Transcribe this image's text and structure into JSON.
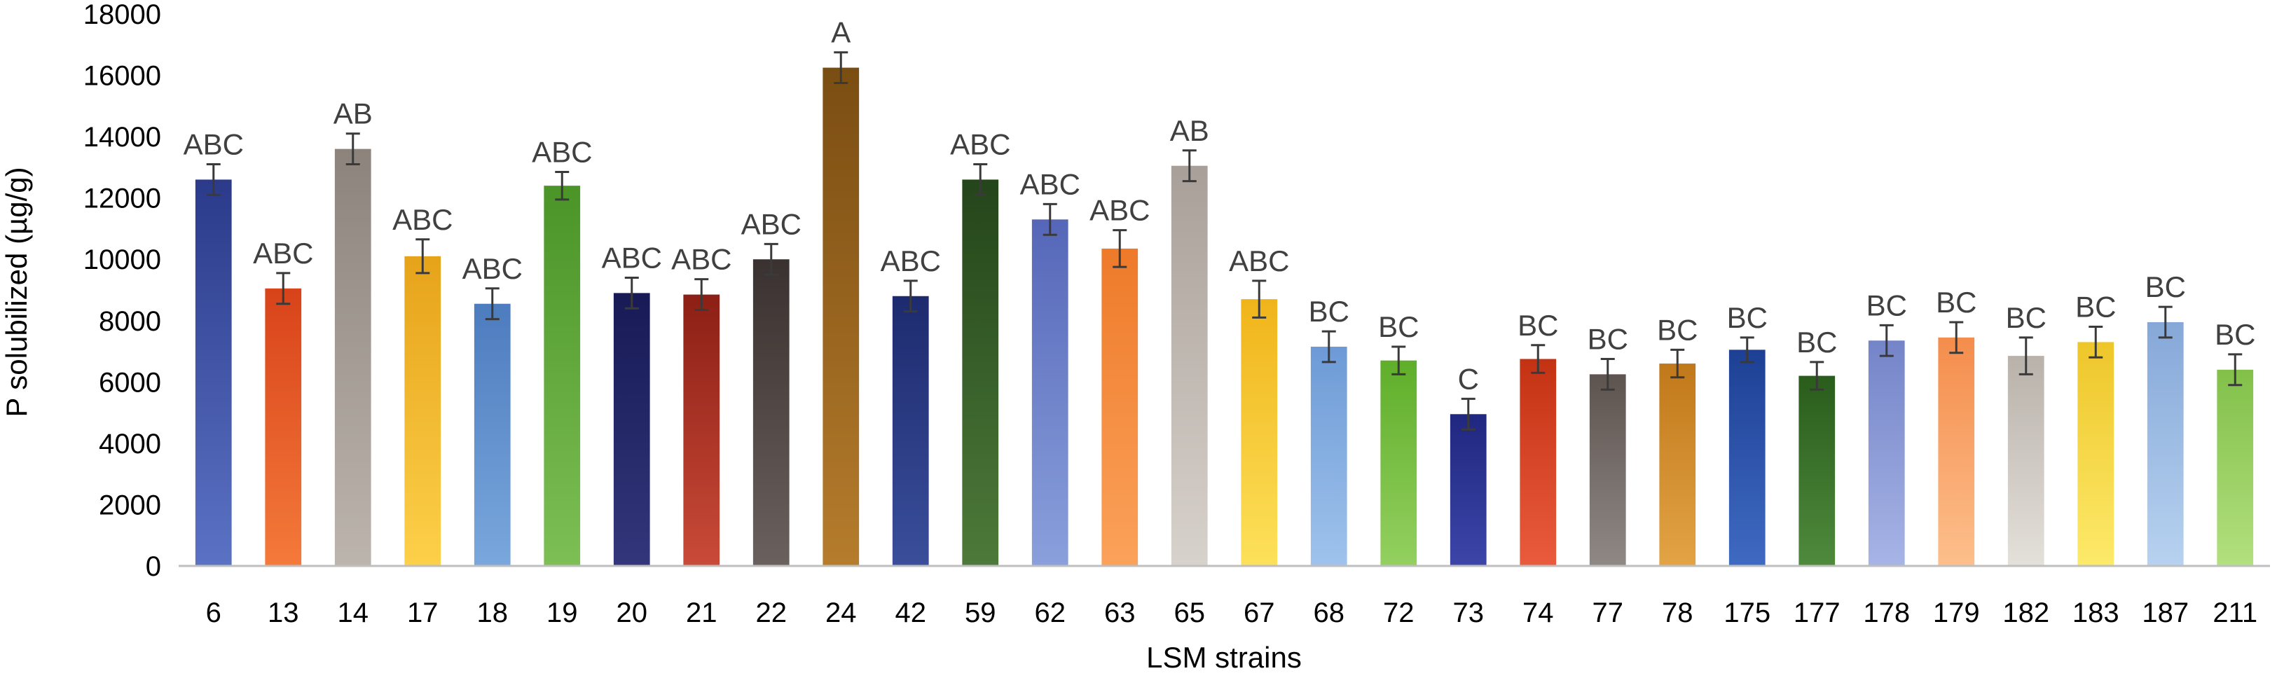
{
  "chart_data": {
    "type": "bar",
    "xlabel": "LSM strains",
    "ylabel": "P solubilized (µg/g)",
    "ylim": [
      0,
      18000
    ],
    "yticks": [
      0,
      2000,
      4000,
      6000,
      8000,
      10000,
      12000,
      14000,
      16000,
      18000
    ],
    "grid": false,
    "categories": [
      "6",
      "13",
      "14",
      "17",
      "18",
      "19",
      "20",
      "21",
      "22",
      "24",
      "42",
      "59",
      "62",
      "63",
      "65",
      "67",
      "68",
      "72",
      "73",
      "74",
      "77",
      "78",
      "175",
      "177",
      "178",
      "179",
      "182",
      "183",
      "187",
      "211"
    ],
    "values": [
      12600,
      9050,
      13600,
      10100,
      8550,
      12400,
      8900,
      8850,
      10000,
      16250,
      8800,
      12600,
      11300,
      10350,
      13050,
      8700,
      7150,
      6700,
      4950,
      6750,
      6250,
      6600,
      7050,
      6200,
      7350,
      7450,
      6850,
      7300,
      7950,
      6400
    ],
    "errors": [
      500,
      500,
      500,
      550,
      500,
      450,
      500,
      500,
      500,
      500,
      500,
      500,
      500,
      600,
      500,
      600,
      500,
      450,
      500,
      450,
      500,
      450,
      400,
      450,
      500,
      500,
      600,
      500,
      500,
      500
    ],
    "group_labels": [
      "ABC",
      "ABC",
      "AB",
      "ABC",
      "ABC",
      "ABC",
      "ABC",
      "ABC",
      "ABC",
      "A",
      "ABC",
      "ABC",
      "ABC",
      "ABC",
      "AB",
      "ABC",
      "BC",
      "BC",
      "C",
      "BC",
      "BC",
      "BC",
      "BC",
      "BC",
      "BC",
      "BC",
      "BC",
      "BC",
      "BC",
      "BC"
    ],
    "colors": [
      [
        "#5b72c4",
        "#2b3a8a"
      ],
      [
        "#f47a3a",
        "#d8431a"
      ],
      [
        "#bcb5ad",
        "#8c847c"
      ],
      [
        "#fdd04a",
        "#e6a31a"
      ],
      [
        "#7aa7dc",
        "#4d7cbf"
      ],
      [
        "#7dbf55",
        "#4a9428"
      ],
      [
        "#33367a",
        "#171a55"
      ],
      [
        "#c94a38",
        "#8c1f15"
      ],
      [
        "#6a605d",
        "#3a3230"
      ],
      [
        "#b57c2c",
        "#7a4d12"
      ],
      [
        "#3a4e9a",
        "#1d2a6e"
      ],
      [
        "#4d7a3a",
        "#24451a"
      ],
      [
        "#8aa0dc",
        "#5566b8"
      ],
      [
        "#fba25a",
        "#ee7a2a"
      ],
      [
        "#d8d2cc",
        "#a8a098"
      ],
      [
        "#fde15a",
        "#f0b41a"
      ],
      [
        "#9fc3ec",
        "#6d9ad6"
      ],
      [
        "#94d060",
        "#5fae2a"
      ],
      [
        "#3d45a8",
        "#1f2780"
      ],
      [
        "#ea5a3c",
        "#c43214"
      ],
      [
        "#8f8884",
        "#5d5450"
      ],
      [
        "#e3a446",
        "#c0781a"
      ],
      [
        "#3f6ac2",
        "#1d4094"
      ],
      [
        "#4e8a3c",
        "#2a5c1c"
      ],
      [
        "#a7b4e6",
        "#7484c8"
      ],
      [
        "#fdbf8c",
        "#f48d4c"
      ],
      [
        "#e4e0da",
        "#b8b2aa"
      ],
      [
        "#fdea6a",
        "#eec62a"
      ],
      [
        "#b7d2f0",
        "#86a8d8"
      ],
      [
        "#b2e07e",
        "#82c04a"
      ]
    ]
  }
}
